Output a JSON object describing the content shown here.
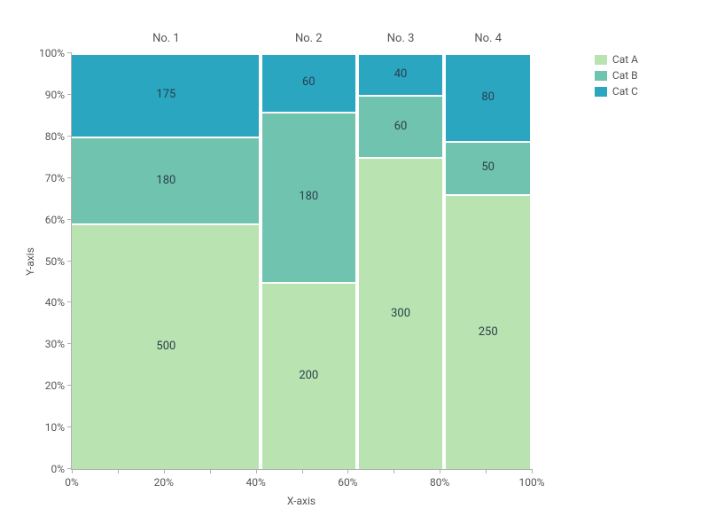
{
  "chart": {
    "type": "marimekko",
    "x_axis_title": "X-axis",
    "y_axis_title": "Y-axis",
    "xlim": [
      0,
      100
    ],
    "ylim": [
      0,
      100
    ],
    "tick_step": 10,
    "tick_format_suffix": "%",
    "background_color": "#ffffff",
    "axis_color": "#b0b0b0",
    "label_fontsize": 12,
    "seg_label_fontsize": 13,
    "header_fontsize": 13,
    "seg_border_color": "#ffffff",
    "seg_border_width": 2,
    "categories": [
      {
        "key": "catA",
        "label": "Cat A",
        "color": "#b9e3b1"
      },
      {
        "key": "catB",
        "label": "Cat B",
        "color": "#70c3ae"
      },
      {
        "key": "catC",
        "label": "Cat C",
        "color": "#2aa6c1"
      }
    ],
    "columns": [
      {
        "header": "No. 1",
        "x_start_pct": 0,
        "x_end_pct": 41,
        "segments": [
          {
            "cat": "catA",
            "value": 500,
            "y_start_pct": 0,
            "y_end_pct": 59
          },
          {
            "cat": "catB",
            "value": 180,
            "y_start_pct": 59,
            "y_end_pct": 80
          },
          {
            "cat": "catC",
            "value": 175,
            "y_start_pct": 80,
            "y_end_pct": 100
          }
        ]
      },
      {
        "header": "No. 2",
        "x_start_pct": 41,
        "x_end_pct": 62,
        "segments": [
          {
            "cat": "catA",
            "value": 200,
            "y_start_pct": 0,
            "y_end_pct": 45
          },
          {
            "cat": "catB",
            "value": 180,
            "y_start_pct": 45,
            "y_end_pct": 86
          },
          {
            "cat": "catC",
            "value": 60,
            "y_start_pct": 86,
            "y_end_pct": 100
          }
        ]
      },
      {
        "header": "No. 3",
        "x_start_pct": 62,
        "x_end_pct": 81,
        "segments": [
          {
            "cat": "catA",
            "value": 300,
            "y_start_pct": 0,
            "y_end_pct": 75
          },
          {
            "cat": "catB",
            "value": 60,
            "y_start_pct": 75,
            "y_end_pct": 90
          },
          {
            "cat": "catC",
            "value": 40,
            "y_start_pct": 90,
            "y_end_pct": 100
          }
        ]
      },
      {
        "header": "No. 4",
        "x_start_pct": 81,
        "x_end_pct": 100,
        "segments": [
          {
            "cat": "catA",
            "value": 250,
            "y_start_pct": 0,
            "y_end_pct": 66
          },
          {
            "cat": "catB",
            "value": 50,
            "y_start_pct": 66,
            "y_end_pct": 79
          },
          {
            "cat": "catC",
            "value": 80,
            "y_start_pct": 79,
            "y_end_pct": 100
          }
        ]
      }
    ],
    "x_ticks_major": [
      0,
      20,
      40,
      60,
      80,
      100
    ],
    "y_ticks": [
      0,
      10,
      20,
      30,
      40,
      50,
      60,
      70,
      80,
      90,
      100
    ]
  }
}
